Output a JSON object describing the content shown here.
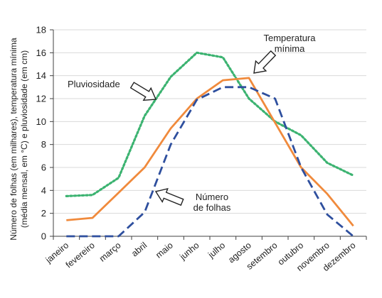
{
  "chart_data": {
    "type": "line",
    "title": "",
    "xlabel": "",
    "ylabel": "Número de folhas (em milhares), temperatura mínima (média mensal, em °C) e pluviosidade (em cm)",
    "ylabel_lines": [
      "Número de folhas (em milhares), temperatura mínima",
      "(média mensal, em °C) e pluviosidade (em cm)"
    ],
    "ylim": [
      0,
      18
    ],
    "yticks": [
      0,
      2,
      4,
      6,
      8,
      10,
      12,
      14,
      16,
      18
    ],
    "grid": "horizontal",
    "legend": "none",
    "categories": [
      "janeiro",
      "fevereiro",
      "março",
      "abril",
      "maio",
      "junho",
      "julho",
      "agosto",
      "setembro",
      "outubro",
      "novembro",
      "dezembro"
    ],
    "series": [
      {
        "name": "Pluviosidade",
        "color": "#3cb371",
        "style": "dotted",
        "values": [
          3.5,
          3.6,
          5.1,
          10.5,
          13.9,
          16.0,
          15.6,
          12.0,
          10.0,
          8.8,
          6.4,
          5.3
        ]
      },
      {
        "name": "Temperatura mínima",
        "color": "#f08a3c",
        "style": "solid",
        "values": [
          1.4,
          1.6,
          3.8,
          6.0,
          9.4,
          12.0,
          13.6,
          13.8,
          9.9,
          6.0,
          3.7,
          0.9
        ]
      },
      {
        "name": "Número de folhas",
        "color": "#2e4f9e",
        "style": "dashed",
        "values": [
          0,
          0,
          0,
          2.1,
          8.0,
          11.9,
          13.0,
          13.0,
          12.0,
          6.0,
          1.9,
          0
        ]
      }
    ],
    "annotations": [
      {
        "series": 0,
        "lines": [
          "Pluviosidade"
        ]
      },
      {
        "series": 1,
        "lines": [
          "Temperatura",
          "mínima"
        ]
      },
      {
        "series": 2,
        "lines": [
          "Número",
          "de folhas"
        ]
      }
    ]
  }
}
